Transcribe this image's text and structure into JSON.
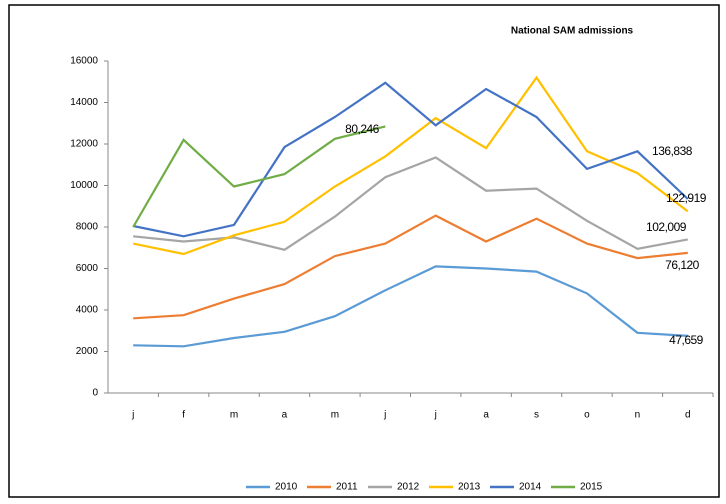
{
  "chart_data": {
    "type": "line",
    "title": "National SAM admissions",
    "categories": [
      "j",
      "f",
      "m",
      "a",
      "m",
      "j",
      "j",
      "a",
      "s",
      "o",
      "n",
      "d"
    ],
    "series": [
      {
        "name": "2010",
        "color": "#5b9bd5",
        "values": [
          2300,
          2250,
          2650,
          2950,
          3700,
          4950,
          6100,
          6000,
          5850,
          4800,
          2900,
          2750
        ]
      },
      {
        "name": "2011",
        "color": "#ed7d31",
        "values": [
          3600,
          3750,
          4550,
          5250,
          6600,
          7200,
          8550,
          7300,
          8400,
          7200,
          6500,
          6750
        ]
      },
      {
        "name": "2012",
        "color": "#a5a5a5",
        "values": [
          7550,
          7300,
          7500,
          6900,
          8500,
          10400,
          11350,
          9750,
          9850,
          8300,
          6950,
          7400
        ]
      },
      {
        "name": "2013",
        "color": "#ffc000",
        "values": [
          7200,
          6700,
          7600,
          8250,
          9950,
          11400,
          13250,
          11800,
          15200,
          11650,
          10600,
          8750
        ]
      },
      {
        "name": "2014",
        "color": "#4472c4",
        "values": [
          8050,
          7550,
          8100,
          11850,
          13300,
          14950,
          12900,
          14650,
          13300,
          10800,
          11650,
          9350
        ]
      },
      {
        "name": "2015",
        "color": "#70ad47",
        "values": [
          8000,
          12200,
          9950,
          10550,
          12250,
          12850,
          null,
          null,
          null,
          null,
          null,
          null
        ]
      }
    ],
    "annotations": [
      "80,246",
      "136,838",
      "122,919",
      "102,009",
      "76,120",
      "47,659"
    ],
    "ylim": [
      0,
      16000
    ],
    "yticks": [
      0,
      2000,
      4000,
      6000,
      8000,
      10000,
      12000,
      14000,
      16000
    ],
    "grid": false,
    "legend": "bottom"
  }
}
